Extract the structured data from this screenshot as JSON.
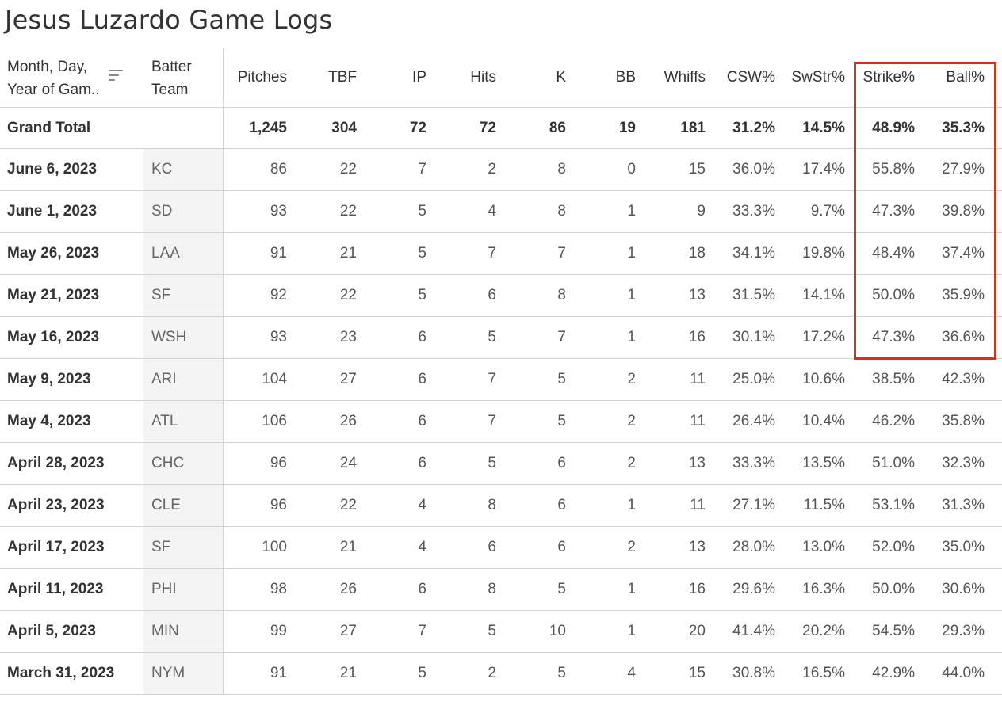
{
  "title": "Jesus Luzardo Game Logs",
  "highlight_color": "#d23418",
  "header": {
    "date_line1": "Month, Day,",
    "date_line2": "Year of Gam..",
    "team_line1": "Batter",
    "team_line2": "Team",
    "sort_icon": "sort-descending-icon",
    "columns": [
      "Pitches",
      "TBF",
      "IP",
      "Hits",
      "K",
      "BB",
      "Whiffs",
      "CSW%",
      "SwStr%",
      "Strike%",
      "Ball%"
    ]
  },
  "total": {
    "label": "Grand Total",
    "values": [
      "1,245",
      "304",
      "72",
      "72",
      "86",
      "19",
      "181",
      "31.2%",
      "14.5%",
      "48.9%",
      "35.3%"
    ]
  },
  "rows": [
    {
      "date": "June 6, 2023",
      "team": "KC",
      "values": [
        "86",
        "22",
        "7",
        "2",
        "8",
        "0",
        "15",
        "36.0%",
        "17.4%",
        "55.8%",
        "27.9%"
      ]
    },
    {
      "date": "June 1, 2023",
      "team": "SD",
      "values": [
        "93",
        "22",
        "5",
        "4",
        "8",
        "1",
        "9",
        "33.3%",
        "9.7%",
        "47.3%",
        "39.8%"
      ]
    },
    {
      "date": "May 26, 2023",
      "team": "LAA",
      "values": [
        "91",
        "21",
        "5",
        "7",
        "7",
        "1",
        "18",
        "34.1%",
        "19.8%",
        "48.4%",
        "37.4%"
      ]
    },
    {
      "date": "May 21, 2023",
      "team": "SF",
      "values": [
        "92",
        "22",
        "5",
        "6",
        "8",
        "1",
        "13",
        "31.5%",
        "14.1%",
        "50.0%",
        "35.9%"
      ]
    },
    {
      "date": "May 16, 2023",
      "team": "WSH",
      "values": [
        "93",
        "23",
        "6",
        "5",
        "7",
        "1",
        "16",
        "30.1%",
        "17.2%",
        "47.3%",
        "36.6%"
      ]
    },
    {
      "date": "May 9, 2023",
      "team": "ARI",
      "values": [
        "104",
        "27",
        "6",
        "7",
        "5",
        "2",
        "11",
        "25.0%",
        "10.6%",
        "38.5%",
        "42.3%"
      ]
    },
    {
      "date": "May 4, 2023",
      "team": "ATL",
      "values": [
        "106",
        "26",
        "6",
        "7",
        "5",
        "2",
        "11",
        "26.4%",
        "10.4%",
        "46.2%",
        "35.8%"
      ]
    },
    {
      "date": "April 28, 2023",
      "team": "CHC",
      "values": [
        "96",
        "24",
        "6",
        "5",
        "6",
        "2",
        "13",
        "33.3%",
        "13.5%",
        "51.0%",
        "32.3%"
      ]
    },
    {
      "date": "April 23, 2023",
      "team": "CLE",
      "values": [
        "96",
        "22",
        "4",
        "8",
        "6",
        "1",
        "11",
        "27.1%",
        "11.5%",
        "53.1%",
        "31.3%"
      ]
    },
    {
      "date": "April 17, 2023",
      "team": "SF",
      "values": [
        "100",
        "21",
        "4",
        "6",
        "6",
        "2",
        "13",
        "28.0%",
        "13.0%",
        "52.0%",
        "35.0%"
      ]
    },
    {
      "date": "April 11, 2023",
      "team": "PHI",
      "values": [
        "98",
        "26",
        "6",
        "8",
        "5",
        "1",
        "16",
        "29.6%",
        "16.3%",
        "50.0%",
        "30.6%"
      ]
    },
    {
      "date": "April 5, 2023",
      "team": "MIN",
      "values": [
        "99",
        "27",
        "7",
        "5",
        "10",
        "1",
        "20",
        "41.4%",
        "20.2%",
        "54.5%",
        "29.3%"
      ]
    },
    {
      "date": "March 31, 2023",
      "team": "NYM",
      "values": [
        "91",
        "21",
        "5",
        "2",
        "5",
        "4",
        "15",
        "30.8%",
        "16.5%",
        "42.9%",
        "44.0%"
      ]
    }
  ]
}
